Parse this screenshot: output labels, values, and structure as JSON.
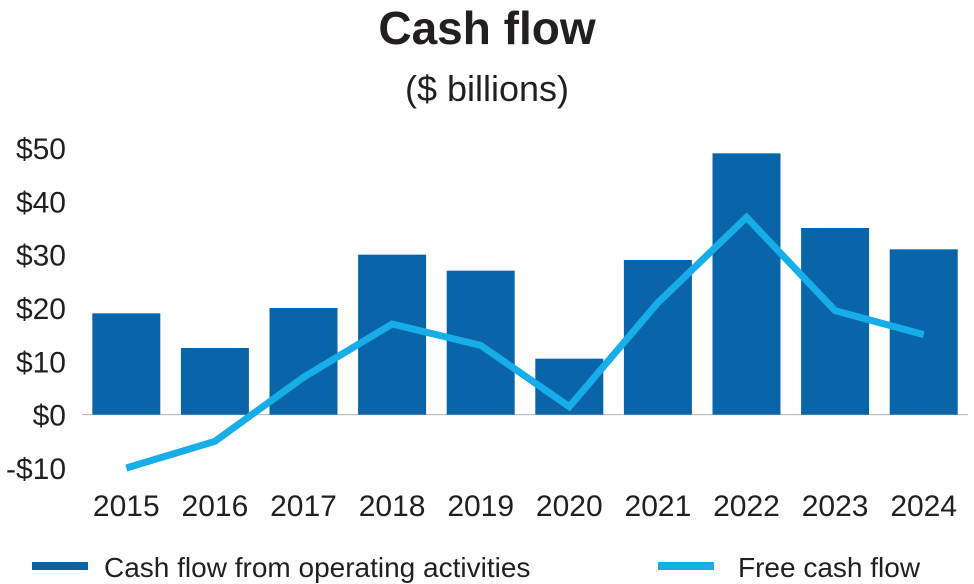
{
  "chart_data": {
    "type": "bar",
    "title": "Cash flow",
    "subtitle": "($ billions)",
    "categories": [
      "2015",
      "2016",
      "2017",
      "2018",
      "2019",
      "2020",
      "2021",
      "2022",
      "2023",
      "2024"
    ],
    "series": [
      {
        "name": "Cash flow from operating activities",
        "type": "bar",
        "color": "#0a64a8",
        "values": [
          19,
          12.5,
          20,
          30,
          27,
          10.5,
          29,
          49,
          35,
          31
        ]
      },
      {
        "name": "Free cash flow",
        "type": "line",
        "color": "#16ade8",
        "values": [
          -10,
          -5,
          7,
          17,
          13,
          1.5,
          21,
          37,
          19.5,
          15
        ]
      }
    ],
    "yticks": [
      {
        "value": -10,
        "label": "-$10"
      },
      {
        "value": 0,
        "label": "$0"
      },
      {
        "value": 10,
        "label": "$10"
      },
      {
        "value": 20,
        "label": "$20"
      },
      {
        "value": 30,
        "label": "$30"
      },
      {
        "value": 40,
        "label": "$40"
      },
      {
        "value": 50,
        "label": "$50"
      }
    ],
    "ylim": [
      -10,
      50
    ],
    "grid": false,
    "legend_position": "bottom",
    "colors": {
      "text": "#231f20",
      "axis": "#b0b0b0"
    }
  }
}
